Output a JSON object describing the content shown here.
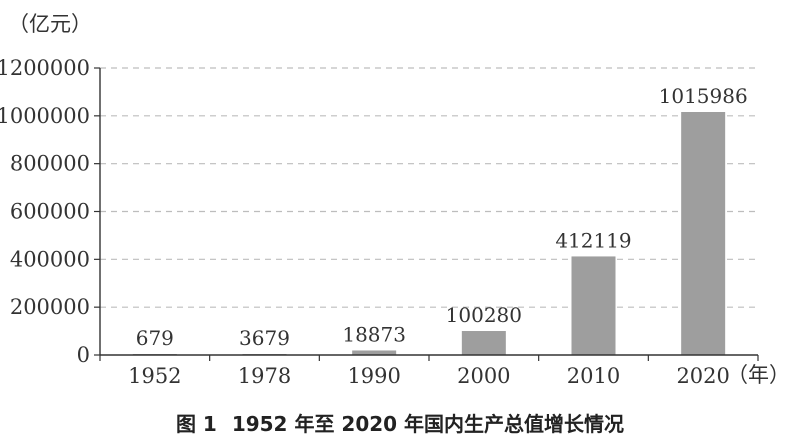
{
  "chart_data": {
    "type": "bar",
    "categories": [
      "1952",
      "1978",
      "1990",
      "2000",
      "2010",
      "2020"
    ],
    "values": [
      679,
      3679,
      18873,
      100280,
      412119,
      1015986
    ],
    "data_labels": [
      "679",
      "3679",
      "18873",
      "100280",
      "412119",
      "1015986"
    ],
    "y_ticks": [
      "0",
      "200000",
      "400000",
      "600000",
      "800000",
      "1000000",
      "1200000"
    ],
    "ylim": [
      0,
      1200000
    ],
    "y_unit": "（亿元）",
    "x_unit": "（年）",
    "grid": true,
    "bar_color": "#9e9e9e"
  },
  "caption": {
    "figure_no": "图 1",
    "title": "1952 年至 2020 年国内生产总值增长情况"
  }
}
